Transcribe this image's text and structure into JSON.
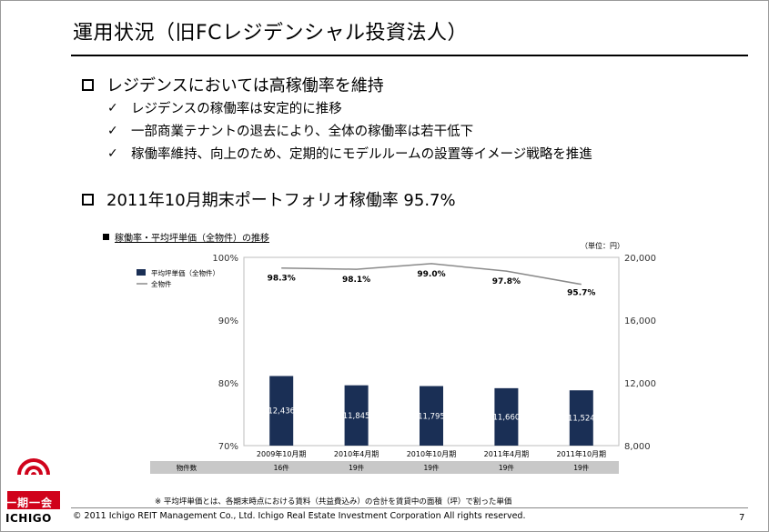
{
  "slide": {
    "title": "運用状況（旧FCレジデンシャル投資法人）",
    "page_number": "7"
  },
  "section1": {
    "heading": "レジデンスにおいては高稼働率を維持",
    "points": [
      "レジデンスの稼働率は安定的に推移",
      "一部商業テナントの退去により、全体の稼働率は若干低下",
      "稼働率維持、向上のため、定期的にモデルルームの設置等イメージ戦略を推進"
    ]
  },
  "section2": {
    "heading": "2011年10月期末ポートフォリオ稼働率 95.7%"
  },
  "chart_title": "稼働率・平均坪単価（全物件）の推移",
  "chart_unit": "（単位：円）",
  "chart_data": {
    "type": "bar+line",
    "categories": [
      "2009年10月期",
      "2010年4月期",
      "2010年10月期",
      "2011年4月期",
      "2011年10月期"
    ],
    "series": [
      {
        "name": "平均坪単価（全物件）",
        "kind": "bar",
        "axis": "right",
        "values": [
          12436,
          11845,
          11795,
          11660,
          11524
        ],
        "labels": [
          "12,436",
          "11,845",
          "11,795",
          "11,660",
          "11,524"
        ]
      },
      {
        "name": "全物件",
        "kind": "line",
        "axis": "left",
        "values": [
          98.3,
          98.1,
          99.0,
          97.8,
          95.7
        ],
        "labels": [
          "98.3%",
          "98.1%",
          "99.0%",
          "97.8%",
          "95.7%"
        ]
      }
    ],
    "left_axis": {
      "range": [
        70,
        100
      ],
      "ticks": [
        70,
        80,
        90,
        100
      ],
      "tick_labels": [
        "70%",
        "80%",
        "90%",
        "100%"
      ]
    },
    "right_axis": {
      "range": [
        8000,
        20000
      ],
      "ticks": [
        8000,
        12000,
        16000,
        20000
      ],
      "tick_labels": [
        "8,000",
        "12,000",
        "16,000",
        "20,000"
      ]
    },
    "table": {
      "row_label": "物件数",
      "values": [
        "16件",
        "19件",
        "19件",
        "19件",
        "19件"
      ]
    },
    "colors": {
      "bar": "#1a2f55",
      "line": "#8a8a8a",
      "table_bg": "#c8c8c8"
    }
  },
  "footnote": "※ 平均坪単価とは、各期末時点における賃料（共益費込み）の合計を賃貸中の面積（坪）で割った単価",
  "copyright": "© 2011 Ichigo REIT Management Co., Ltd.  Ichigo Real Estate Investment Corporation  All rights reserved.",
  "logo": {
    "jp": "一期一会",
    "en": "ICHIGO",
    "color": "#d0021b"
  }
}
